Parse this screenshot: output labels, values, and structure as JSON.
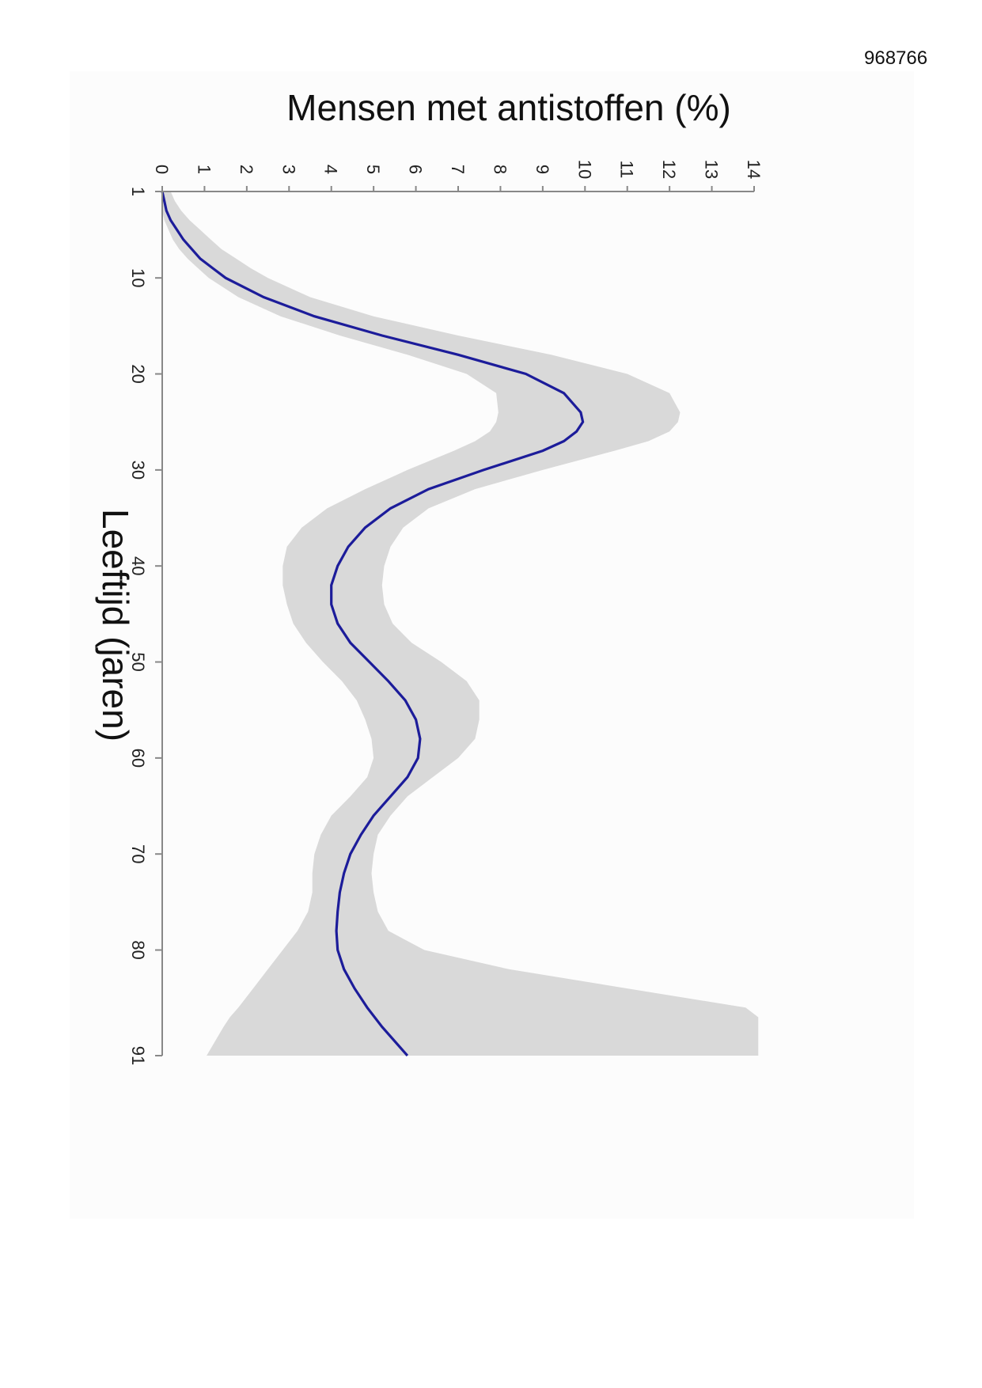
{
  "document": {
    "id": "968766"
  },
  "chart_data": {
    "type": "line",
    "orientation": "rotated-90",
    "title": "Mensen met antistoffen (%)",
    "xlabel": "Leeftijd (jaren)",
    "ylabel": "Mensen met antistoffen (%)",
    "xlim": [
      1,
      91
    ],
    "ylim": [
      0,
      14
    ],
    "x_ticks": [
      1,
      10,
      20,
      30,
      40,
      50,
      60,
      70,
      80,
      91
    ],
    "y_ticks": [
      0,
      1,
      2,
      3,
      4,
      5,
      6,
      7,
      8,
      9,
      10,
      11,
      12,
      13,
      14
    ],
    "grid": false,
    "legend": "none",
    "colors": {
      "line": "#1c1c9a",
      "band": "#d9d9d9",
      "axis": "#888888"
    },
    "series": [
      {
        "x": [
          1,
          2,
          3,
          4,
          5,
          6,
          7,
          8,
          9,
          10,
          12,
          14,
          16,
          18,
          20,
          22,
          24,
          25,
          26,
          27,
          28,
          30,
          32,
          34,
          36,
          38,
          40,
          42,
          44,
          46,
          48,
          50,
          52,
          54,
          56,
          58,
          60,
          62,
          64,
          66,
          68,
          70,
          72,
          74,
          76,
          78,
          80,
          82,
          84,
          86,
          88,
          91
        ],
        "values": [
          0.0,
          0.05,
          0.1,
          0.2,
          0.35,
          0.5,
          0.7,
          0.9,
          1.2,
          1.5,
          2.4,
          3.6,
          5.2,
          7.0,
          8.6,
          9.5,
          9.9,
          9.95,
          9.8,
          9.5,
          9.0,
          7.6,
          6.3,
          5.4,
          4.8,
          4.4,
          4.15,
          4.0,
          4.0,
          4.15,
          4.45,
          4.9,
          5.35,
          5.75,
          6.0,
          6.1,
          6.05,
          5.8,
          5.4,
          5.0,
          4.7,
          4.45,
          4.3,
          4.2,
          4.15,
          4.12,
          4.15,
          4.3,
          4.55,
          4.85,
          5.2,
          5.8
        ]
      }
    ],
    "bands": [
      {
        "x": [
          1,
          2,
          3,
          4,
          5,
          6,
          7,
          8,
          9,
          10,
          12,
          14,
          16,
          18,
          20,
          22,
          24,
          25,
          26,
          27,
          28,
          30,
          32,
          34,
          36,
          38,
          40,
          42,
          44,
          46,
          48,
          50,
          52,
          54,
          56,
          58,
          60,
          62,
          64,
          66,
          68,
          70,
          72,
          74,
          76,
          78,
          80,
          82,
          84,
          86,
          87,
          88,
          91
        ],
        "lower": [
          0.0,
          0.0,
          0.0,
          0.05,
          0.15,
          0.25,
          0.4,
          0.6,
          0.85,
          1.1,
          1.8,
          2.8,
          4.2,
          5.8,
          7.2,
          7.9,
          7.95,
          7.9,
          7.75,
          7.4,
          6.9,
          5.8,
          4.8,
          3.9,
          3.3,
          2.95,
          2.85,
          2.85,
          2.95,
          3.1,
          3.4,
          3.8,
          4.25,
          4.6,
          4.8,
          4.95,
          5.0,
          4.85,
          4.45,
          4.0,
          3.75,
          3.6,
          3.55,
          3.55,
          3.45,
          3.2,
          2.85,
          2.5,
          2.15,
          1.8,
          1.6,
          1.45,
          1.05
        ],
        "upper": [
          0.2,
          0.3,
          0.45,
          0.65,
          0.9,
          1.15,
          1.4,
          1.75,
          2.1,
          2.5,
          3.5,
          5.0,
          7.0,
          9.2,
          11.0,
          12.0,
          12.25,
          12.2,
          12.0,
          11.5,
          10.7,
          9.0,
          7.4,
          6.3,
          5.7,
          5.4,
          5.25,
          5.2,
          5.25,
          5.45,
          5.9,
          6.6,
          7.2,
          7.5,
          7.5,
          7.4,
          7.0,
          6.4,
          5.8,
          5.4,
          5.1,
          5.0,
          4.95,
          5.0,
          5.1,
          5.35,
          6.2,
          8.2,
          11.0,
          13.8,
          14.1,
          14.1,
          14.1
        ]
      }
    ]
  }
}
